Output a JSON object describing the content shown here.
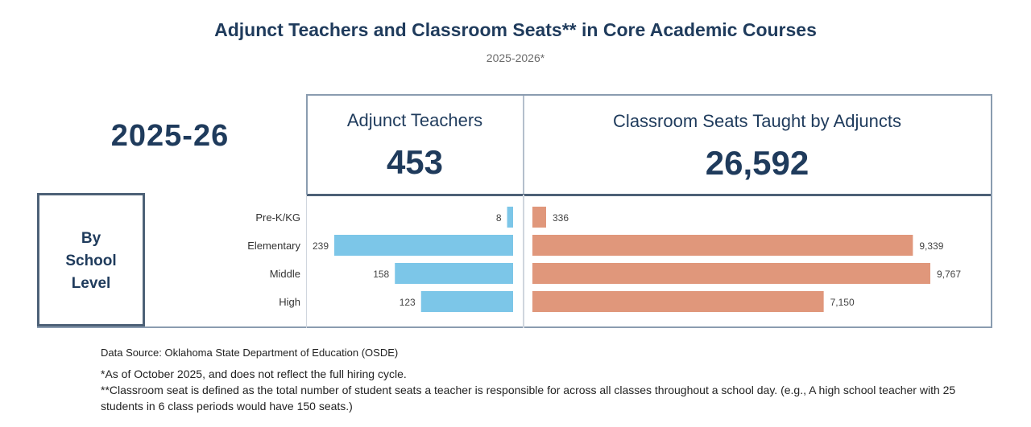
{
  "header": {
    "title": "Adjunct Teachers and Classroom Seats** in Core Academic Courses",
    "subtitle": "2025-2026*"
  },
  "year_label": "2025-26",
  "kpis": {
    "teachers_label": "Adjunct Teachers",
    "teachers_value": "453",
    "seats_label": "Classroom Seats Taught by Adjuncts",
    "seats_value": "26,592"
  },
  "row_header": {
    "line1": "By",
    "line2": "School",
    "line3": "Level"
  },
  "chart_data": {
    "type": "bar",
    "categories": [
      "Pre-K/KG",
      "Elementary",
      "Middle",
      "High"
    ],
    "series": [
      {
        "name": "Adjunct Teachers",
        "values": [
          8,
          239,
          158,
          123
        ],
        "labels": [
          "8",
          "239",
          "158",
          "123"
        ],
        "color": "#7cc6e8"
      },
      {
        "name": "Classroom Seats Taught by Adjuncts",
        "values": [
          336,
          9339,
          9767,
          7150
        ],
        "labels": [
          "336",
          "9,339",
          "9,767",
          "7,150"
        ],
        "color": "#e0977b"
      }
    ]
  },
  "footer": {
    "source": "Data Source: Oklahoma State Department of Education (OSDE)",
    "note1": "*As of October 2025, and does not reflect the full hiring cycle.",
    "note2": "**Classroom seat is defined as the total number of student seats a teacher is responsible for across all classes throughout a school day. (e.g., A high school teacher with 25 students in 6 class periods would have 150 seats.)"
  }
}
